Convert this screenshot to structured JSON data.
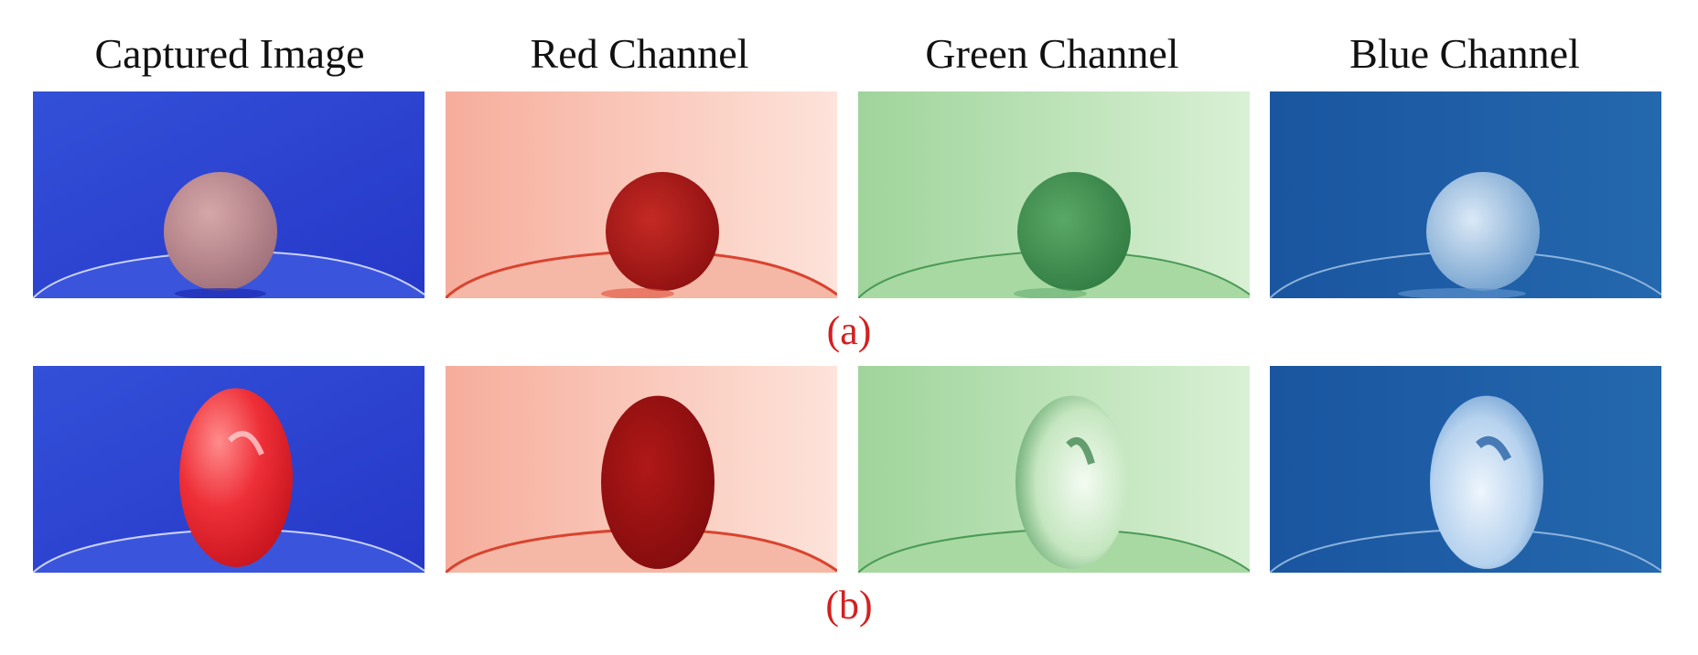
{
  "columns": [
    {
      "title": "Captured Image"
    },
    {
      "title": "Red Channel"
    },
    {
      "title": "Green Channel"
    },
    {
      "title": "Blue Channel"
    }
  ],
  "rows": [
    {
      "label": "(a)",
      "object": "round-ball"
    },
    {
      "label": "(b)",
      "object": "tomato"
    }
  ],
  "colors": {
    "label": "#d42020",
    "captured_bg": "#2e45d6",
    "red_bg": "#f7b4a4",
    "green_bg": "#b6deb0",
    "blue_bg": "#1f5fa6"
  }
}
